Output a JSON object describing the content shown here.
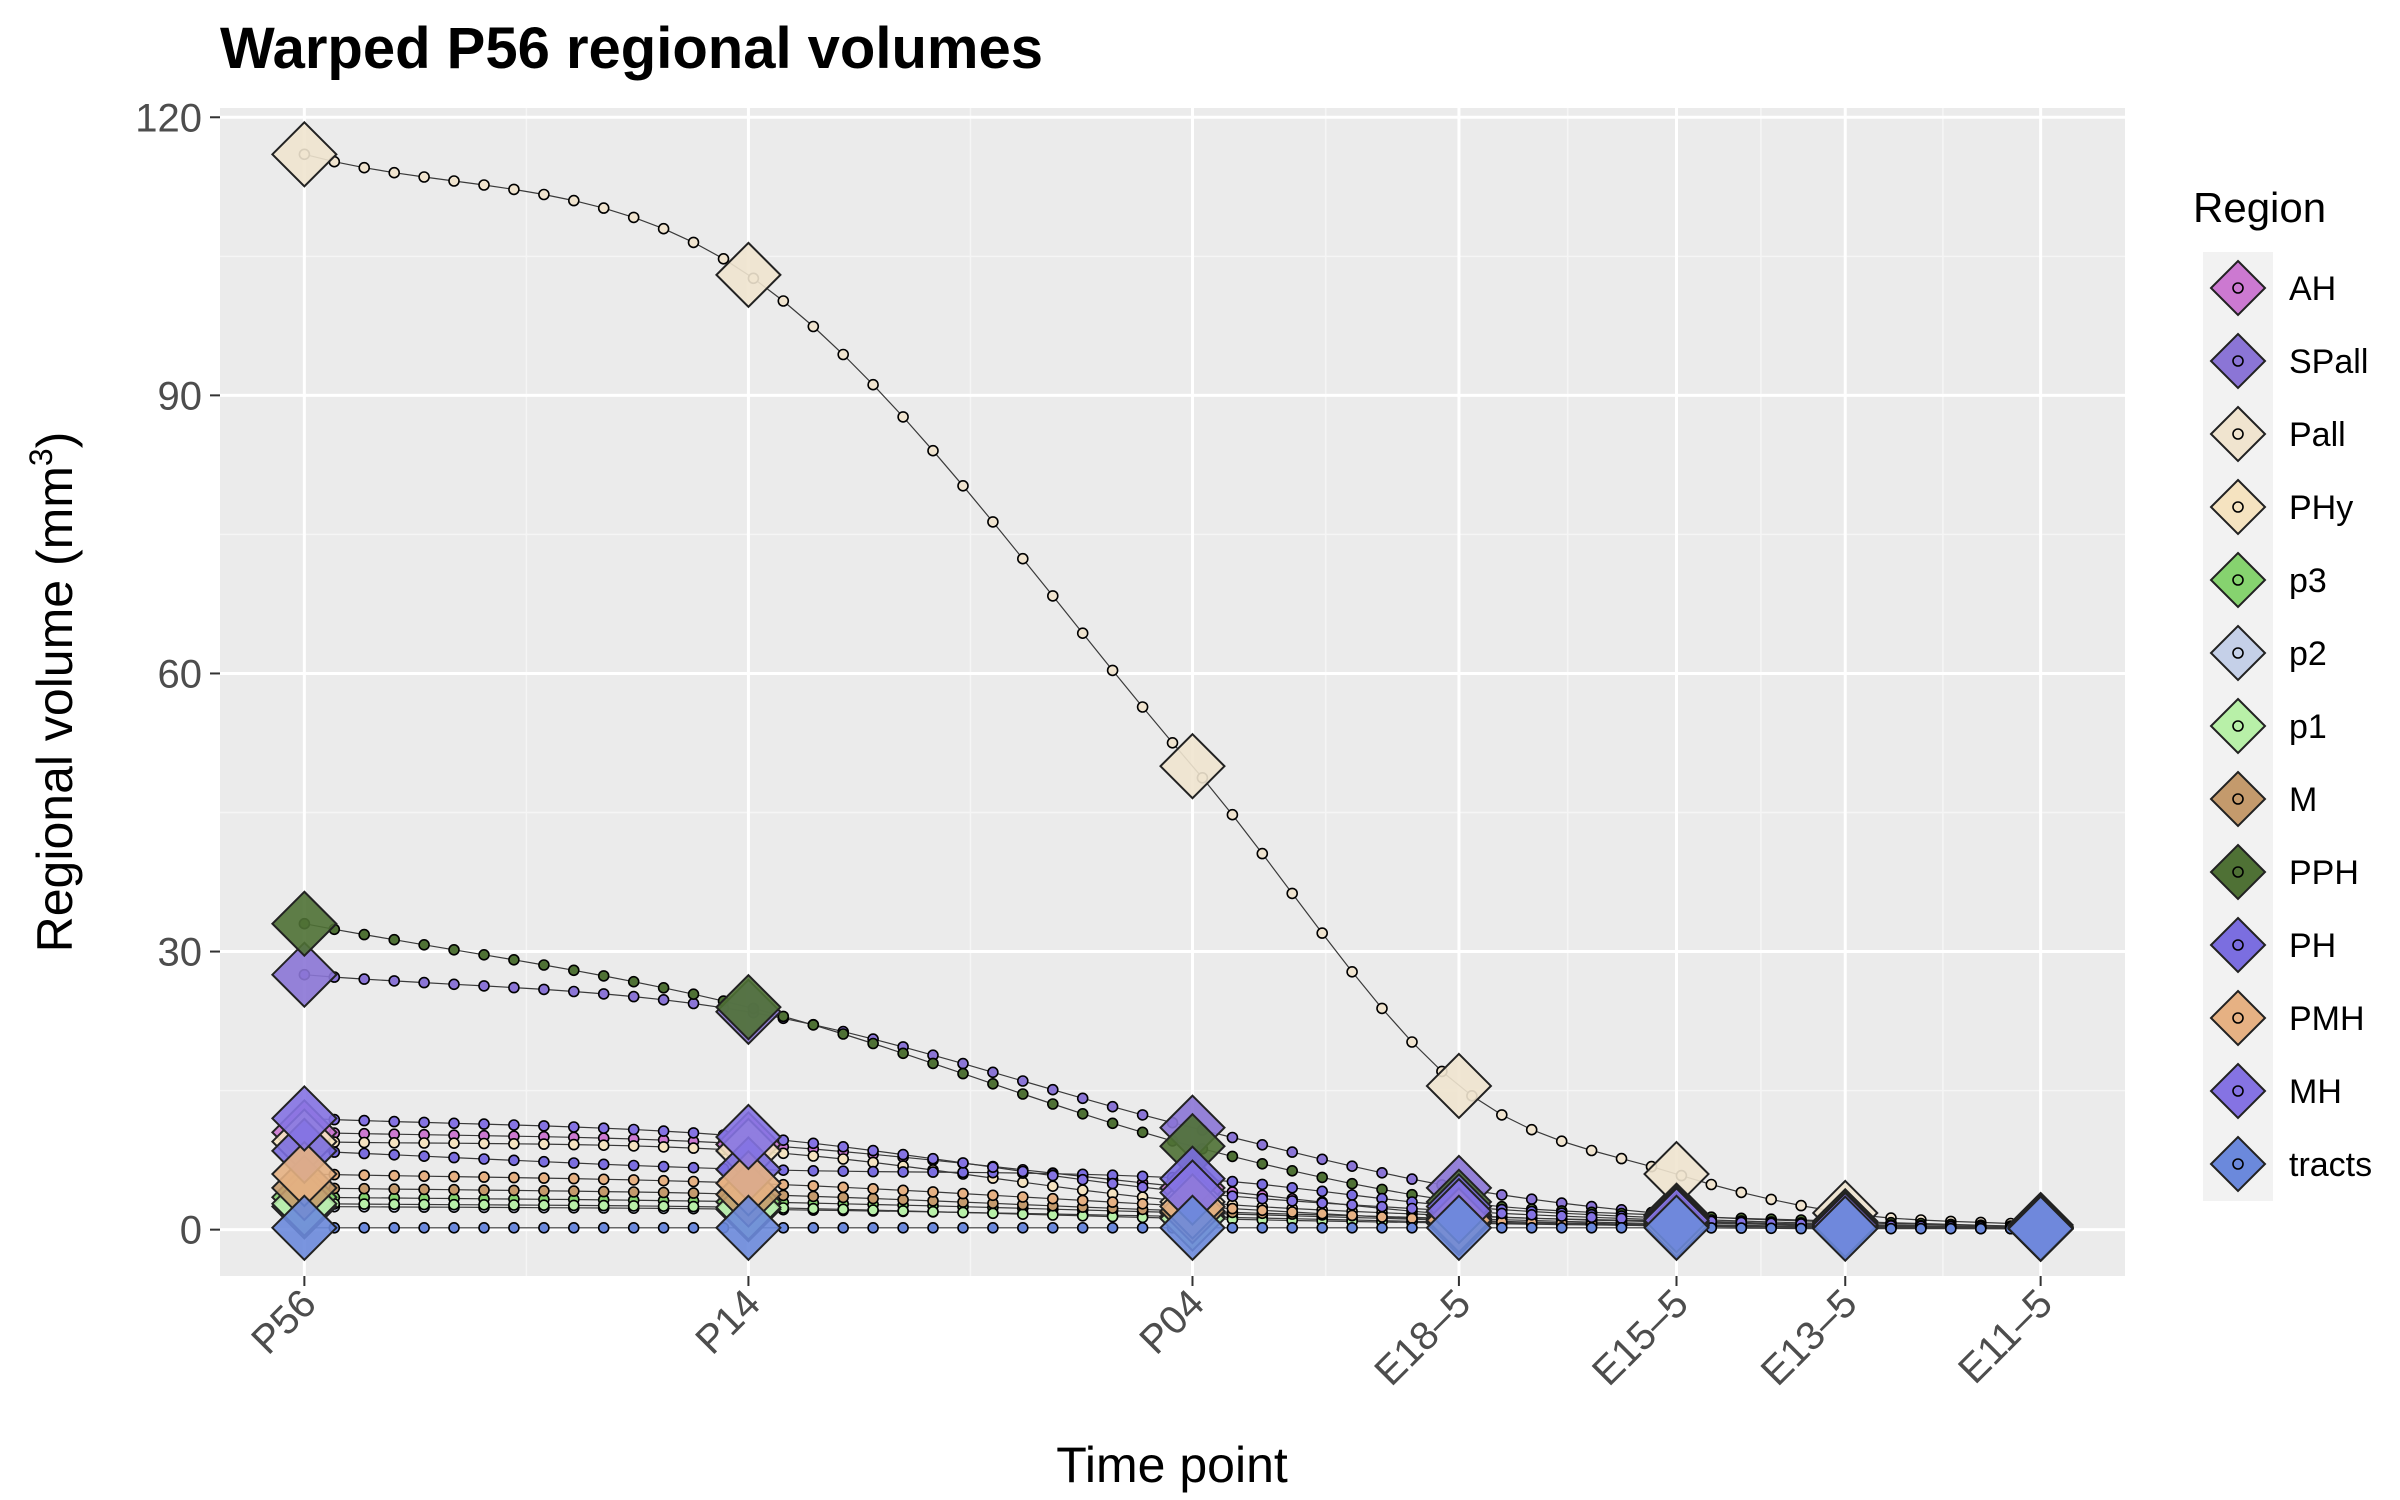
{
  "chart_data": {
    "type": "line",
    "title": "Warped P56 regional volumes",
    "xlabel": "Time point",
    "ylabel_main": "Regional volume (mm",
    "ylabel_sup": "3",
    "ylabel_close": ")",
    "legend_title": "Region",
    "legend_position": "right",
    "grid": true,
    "ylim": [
      -5,
      121
    ],
    "yticks": [
      0,
      30,
      60,
      90,
      120
    ],
    "x_positions": [
      0,
      1,
      2,
      2.6,
      3.09,
      3.47,
      3.91
    ],
    "xlim": [
      -0.19,
      4.1
    ],
    "minor_x": [
      0.5,
      1.5,
      2.3,
      2.845,
      3.28,
      3.69
    ],
    "minor_y": [
      15,
      45,
      75,
      105
    ],
    "categories": [
      "P56",
      "P14",
      "P04",
      "E18–5",
      "E15–5",
      "E13–5",
      "E11–5"
    ],
    "series": [
      {
        "name": "AH",
        "color": "#cc79d1",
        "values": [
          10.5,
          9.2,
          4.5,
          1.6,
          0.9,
          0.5,
          0.2
        ]
      },
      {
        "name": "SPall",
        "color": "#8b75d6",
        "values": [
          27.5,
          23.5,
          11.0,
          4.5,
          1.6,
          0.8,
          0.3
        ]
      },
      {
        "name": "Pall",
        "color": "#f0e4cf",
        "values": [
          116.0,
          103.0,
          50.0,
          15.5,
          6.0,
          1.8,
          0.5
        ]
      },
      {
        "name": "PHy",
        "color": "#f5e3c0",
        "values": [
          9.5,
          8.5,
          3.0,
          1.5,
          0.8,
          0.4,
          0.1
        ]
      },
      {
        "name": "p3",
        "color": "#86d36f",
        "values": [
          3.5,
          3.0,
          1.8,
          1.0,
          0.5,
          0.3,
          0.1
        ]
      },
      {
        "name": "p2",
        "color": "#c5d0e8",
        "values": [
          2.5,
          2.2,
          1.4,
          0.8,
          0.4,
          0.2,
          0.1
        ]
      },
      {
        "name": "p1",
        "color": "#b8f0a8",
        "values": [
          2.8,
          2.4,
          1.2,
          0.7,
          0.4,
          0.2,
          0.1
        ]
      },
      {
        "name": "M",
        "color": "#c49a6c",
        "values": [
          4.5,
          3.8,
          2.0,
          1.2,
          0.6,
          0.3,
          0.1
        ]
      },
      {
        "name": "PPH",
        "color": "#4f7135",
        "values": [
          33.0,
          24.0,
          9.0,
          3.0,
          1.5,
          0.9,
          0.3
        ]
      },
      {
        "name": "PH",
        "color": "#7b6ee0",
        "values": [
          8.5,
          6.5,
          5.5,
          2.5,
          1.2,
          0.6,
          0.2
        ]
      },
      {
        "name": "PMH",
        "color": "#e6b183",
        "values": [
          6.0,
          5.0,
          2.5,
          1.0,
          0.5,
          0.3,
          0.1
        ]
      },
      {
        "name": "MH",
        "color": "#8573e3",
        "values": [
          12.0,
          10.0,
          4.0,
          2.0,
          1.0,
          0.5,
          0.2
        ]
      },
      {
        "name": "tracts",
        "color": "#6b89dc",
        "values": [
          0.2,
          0.2,
          0.2,
          0.2,
          0.2,
          0.1,
          0.1
        ]
      }
    ]
  }
}
